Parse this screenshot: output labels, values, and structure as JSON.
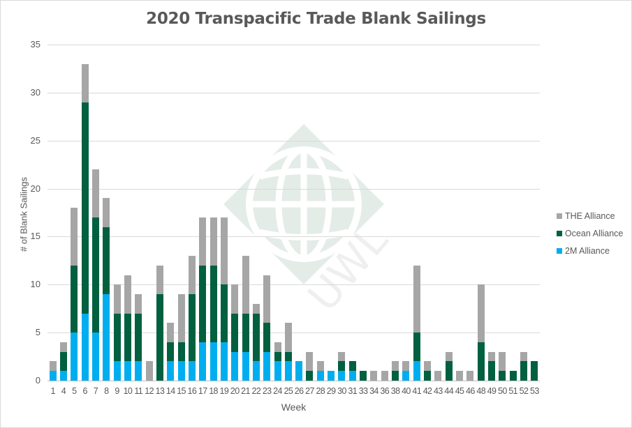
{
  "chart_data": {
    "type": "bar",
    "stacked": true,
    "title": "2020 Transpacific Trade Blank Sailings",
    "xlabel": "Week",
    "ylabel": "# of Blank Sailings",
    "ylim": [
      0,
      35
    ],
    "yticks": [
      0,
      5,
      10,
      15,
      20,
      25,
      30,
      35
    ],
    "grid": true,
    "legend_position": "right",
    "categories": [
      "1",
      "4",
      "5",
      "6",
      "7",
      "8",
      "9",
      "10",
      "11",
      "12",
      "13",
      "14",
      "15",
      "16",
      "17",
      "18",
      "19",
      "20",
      "21",
      "22",
      "23",
      "24",
      "25",
      "26",
      "27",
      "28",
      "29",
      "30",
      "31",
      "33",
      "34",
      "36",
      "38",
      "40",
      "41",
      "42",
      "43",
      "44",
      "45",
      "46",
      "48",
      "49",
      "50",
      "51",
      "52",
      "53"
    ],
    "series": [
      {
        "name": "2M Alliance",
        "color": "#00AEEF",
        "values": [
          1,
          1,
          5,
          7,
          5,
          9,
          2,
          2,
          2,
          0,
          0,
          2,
          2,
          2,
          4,
          4,
          4,
          3,
          3,
          2,
          3,
          2,
          2,
          2,
          0,
          1,
          1,
          1,
          1,
          0,
          0,
          0,
          0,
          1,
          2,
          0,
          0,
          0,
          0,
          0,
          0,
          0,
          0,
          0,
          0,
          0
        ]
      },
      {
        "name": "Ocean Alliance",
        "color": "#00603F",
        "values": [
          0,
          2,
          7,
          22,
          12,
          7,
          5,
          5,
          5,
          0,
          9,
          2,
          2,
          7,
          8,
          8,
          6,
          4,
          4,
          5,
          3,
          1,
          1,
          0,
          1,
          0,
          0,
          1,
          1,
          1,
          0,
          0,
          1,
          0,
          3,
          1,
          0,
          2,
          0,
          0,
          4,
          2,
          1,
          1,
          2,
          2
        ]
      },
      {
        "name": "THE Alliance",
        "color": "#A6A6A6",
        "values": [
          1,
          1,
          6,
          4,
          5,
          3,
          3,
          4,
          2,
          2,
          3,
          2,
          5,
          4,
          5,
          5,
          7,
          3,
          6,
          1,
          5,
          1,
          3,
          0,
          2,
          1,
          0,
          1,
          0,
          0,
          1,
          1,
          1,
          1,
          7,
          1,
          1,
          1,
          1,
          1,
          6,
          1,
          2,
          0,
          1,
          0
        ]
      }
    ]
  },
  "legend": [
    {
      "label": "THE Alliance",
      "color": "#A6A6A6"
    },
    {
      "label": "Ocean Alliance",
      "color": "#00603F"
    },
    {
      "label": "2M Alliance",
      "color": "#00AEEF"
    }
  ],
  "watermark": {
    "text": "UWL"
  }
}
